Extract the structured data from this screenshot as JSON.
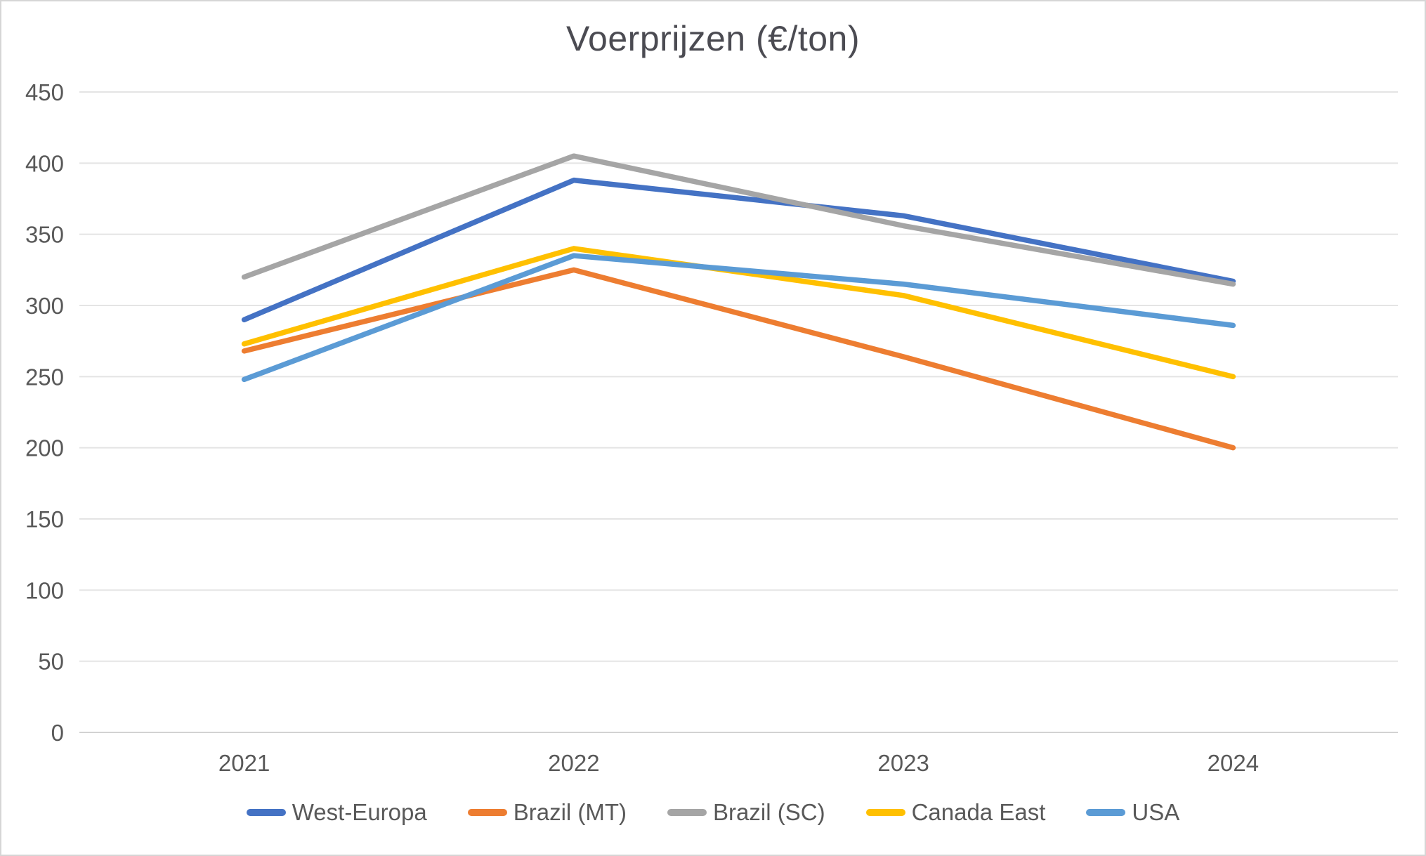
{
  "window": {
    "background_color": "#ffffff",
    "border_color": "#d6d6d6"
  },
  "chart_data": {
    "type": "line",
    "title": "Voerprijzen (€/ton)",
    "categories": [
      "2021",
      "2022",
      "2023",
      "2024"
    ],
    "series": [
      {
        "name": "West-Europa",
        "color": "#4472C4",
        "values": [
          290,
          388,
          363,
          317
        ]
      },
      {
        "name": "Brazil (MT)",
        "color": "#ED7D31",
        "values": [
          268,
          325,
          264,
          200
        ]
      },
      {
        "name": "Brazil (SC)",
        "color": "#A5A5A5",
        "values": [
          320,
          405,
          356,
          315
        ]
      },
      {
        "name": "Canada East",
        "color": "#FFC000",
        "values": [
          273,
          340,
          307,
          250
        ]
      },
      {
        "name": "USA",
        "color": "#5B9BD5",
        "values": [
          248,
          335,
          315,
          286
        ]
      }
    ],
    "xlabel": "",
    "ylabel": "",
    "ylim": [
      0,
      450
    ],
    "yticks": [
      0,
      50,
      100,
      150,
      200,
      250,
      300,
      350,
      400,
      450
    ],
    "grid": true,
    "legend_position": "bottom",
    "title_color": "#4b4b52",
    "axis_label_color": "#595959",
    "gridline_color": "#e4e4e4",
    "zero_line_color": "#d2d2d2",
    "line_width": 7.5
  }
}
